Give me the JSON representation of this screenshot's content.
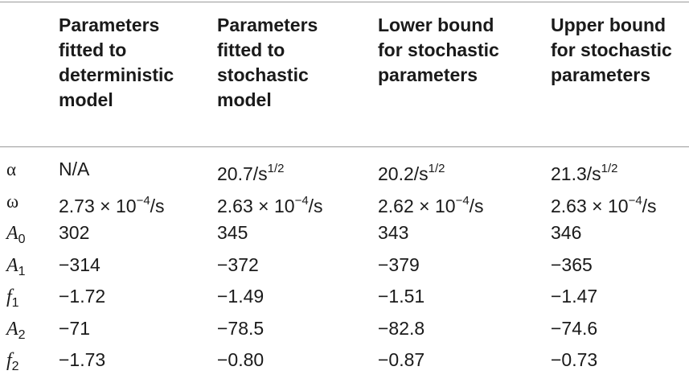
{
  "columns": [
    "",
    "Parameters\nfitted to\ndeterministic\nmodel",
    "Parameters\nfitted to\nstochastic\nmodel",
    "Lower bound\nfor stochastic\nparameters",
    "Upper bound\nfor stochastic\nparameters"
  ],
  "rows": [
    {
      "symbol": "α",
      "subscript": "",
      "values": [
        {
          "main": "N/A",
          "sup": "",
          "tail": ""
        },
        {
          "main": "20.7/s",
          "sup": "1/2",
          "tail": ""
        },
        {
          "main": "20.2/s",
          "sup": "1/2",
          "tail": ""
        },
        {
          "main": "21.3/s",
          "sup": "1/2",
          "tail": ""
        }
      ]
    },
    {
      "symbol": "ω",
      "subscript": "",
      "values": [
        {
          "main": "2.73 × 10",
          "sup": "−4",
          "tail": "/s"
        },
        {
          "main": "2.63 × 10",
          "sup": "−4",
          "tail": "/s"
        },
        {
          "main": "2.62 × 10",
          "sup": "−4",
          "tail": "/s"
        },
        {
          "main": "2.63 × 10",
          "sup": "−4",
          "tail": "/s"
        }
      ]
    },
    {
      "symbol": "A",
      "subscript": "0",
      "values": [
        {
          "main": "302",
          "sup": "",
          "tail": ""
        },
        {
          "main": "345",
          "sup": "",
          "tail": ""
        },
        {
          "main": "343",
          "sup": "",
          "tail": ""
        },
        {
          "main": "346",
          "sup": "",
          "tail": ""
        }
      ]
    },
    {
      "symbol": "A",
      "subscript": "1",
      "values": [
        {
          "main": "−314",
          "sup": "",
          "tail": ""
        },
        {
          "main": "−372",
          "sup": "",
          "tail": ""
        },
        {
          "main": "−379",
          "sup": "",
          "tail": ""
        },
        {
          "main": "−365",
          "sup": "",
          "tail": ""
        }
      ]
    },
    {
      "symbol": "f",
      "subscript": "1",
      "values": [
        {
          "main": "−1.72",
          "sup": "",
          "tail": ""
        },
        {
          "main": "−1.49",
          "sup": "",
          "tail": ""
        },
        {
          "main": "−1.51",
          "sup": "",
          "tail": ""
        },
        {
          "main": "−1.47",
          "sup": "",
          "tail": ""
        }
      ]
    },
    {
      "symbol": "A",
      "subscript": "2",
      "values": [
        {
          "main": "−71",
          "sup": "",
          "tail": ""
        },
        {
          "main": "−78.5",
          "sup": "",
          "tail": ""
        },
        {
          "main": "−82.8",
          "sup": "",
          "tail": ""
        },
        {
          "main": "−74.6",
          "sup": "",
          "tail": ""
        }
      ]
    },
    {
      "symbol": "f",
      "subscript": "2",
      "values": [
        {
          "main": "−1.73",
          "sup": "",
          "tail": ""
        },
        {
          "main": "−0.80",
          "sup": "",
          "tail": ""
        },
        {
          "main": "−0.87",
          "sup": "",
          "tail": ""
        },
        {
          "main": "−0.73",
          "sup": "",
          "tail": ""
        }
      ]
    }
  ]
}
